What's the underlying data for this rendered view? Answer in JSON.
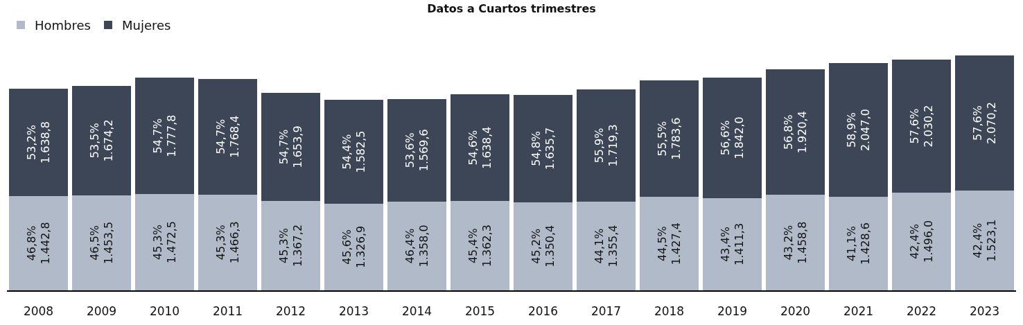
{
  "chart_data": {
    "type": "bar",
    "title": "Datos a Cuartos trimestres",
    "stacked": true,
    "legend": "top left",
    "categories": [
      "2008",
      "2009",
      "2010",
      "2011",
      "2012",
      "2013",
      "2014",
      "2015",
      "2016",
      "2017",
      "2018",
      "2019",
      "2020",
      "2021",
      "2022",
      "2023"
    ],
    "series": [
      {
        "name": "Hombres",
        "color": "#b1bac9",
        "values": [
          1442.8,
          1453.5,
          1472.5,
          1466.3,
          1367.2,
          1326.9,
          1358.0,
          1362.3,
          1350.4,
          1355.4,
          1427.4,
          1411.3,
          1458.8,
          1428.6,
          1496.0,
          1523.1
        ],
        "value_labels": [
          "46,8%\n1.442,8",
          "46,5%\n1.453,5",
          "45,3%\n1.472,5",
          "45,3%\n1.466,3",
          "45,3%\n1.367,2",
          "45,6%\n1.326,9",
          "46,4%\n1.358,0",
          "45,4%\n1.362,3",
          "45,2%\n1.350,4",
          "44,1%\n1.355,4",
          "44,5%\n1.427,4",
          "43,4%\n1.411,3",
          "43,2%\n1.458,8",
          "41,1%\n1.428,6",
          "42,4%\n1.496,0",
          "42,4%\n1.523,1"
        ]
      },
      {
        "name": "Mujeres",
        "color": "#3d4657",
        "values": [
          1638.8,
          1674.2,
          1777.8,
          1768.4,
          1653.9,
          1582.5,
          1569.6,
          1638.4,
          1635.7,
          1719.3,
          1783.6,
          1842.0,
          1920.4,
          2047.0,
          2030.2,
          2070.2
        ],
        "value_labels": [
          "53,2%\n1.638,8",
          "53,5%\n1.674,2",
          "54,7%\n1.777,8",
          "54,7%\n1.768,4",
          "54,7%\n1.653,9",
          "54,4%\n1.582,5",
          "53,6%\n1.569,6",
          "54,6%\n1.638,4",
          "54,8%\n1.635,7",
          "55,9%\n1.719,3",
          "55,5%\n1.783,6",
          "56,6%\n1.842,0",
          "56,8%\n1.920,4",
          "58,9%\n2.047,0",
          "57,6%\n2.030,2",
          "57,6%\n2.070,2"
        ]
      }
    ]
  }
}
